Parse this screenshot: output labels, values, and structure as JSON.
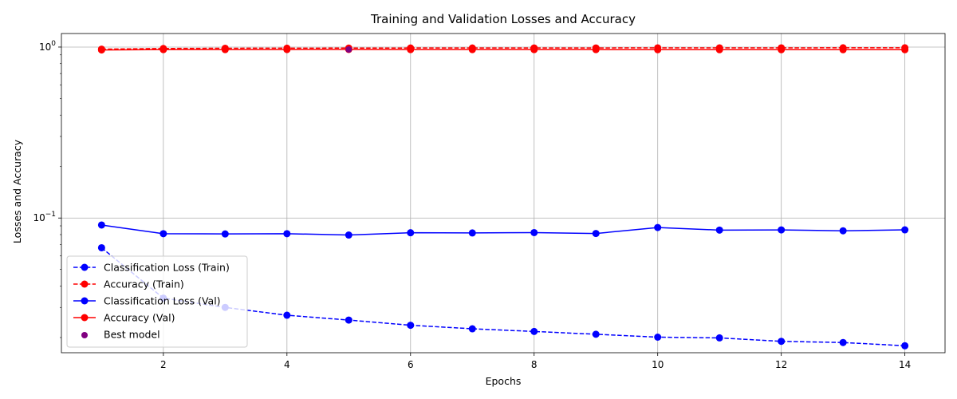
{
  "chart_data": {
    "type": "line",
    "title": "Training and Validation Losses and Accuracy",
    "xlabel": "Epochs",
    "ylabel": "Losses and Accuracy",
    "yscale": "log",
    "ylim": [
      0.0163,
      1.2
    ],
    "xlim": [
      0.35,
      14.65
    ],
    "grid": true,
    "legend_position": "lower-left",
    "x_ticks": [
      2,
      4,
      6,
      8,
      10,
      12,
      14
    ],
    "y_ticks": [
      {
        "value": 1,
        "label": "10^0"
      },
      {
        "value": 0.1,
        "label": "10^-1"
      }
    ],
    "x": [
      1,
      2,
      3,
      4,
      5,
      6,
      7,
      8,
      9,
      10,
      11,
      12,
      13,
      14
    ],
    "series": [
      {
        "name": "Classification Loss (Train)",
        "color": "#0000ff",
        "line_style": "dashed",
        "marker": "circle",
        "values": [
          0.067,
          0.034,
          0.03,
          0.027,
          0.0253,
          0.0236,
          0.0225,
          0.0217,
          0.0209,
          0.0201,
          0.0199,
          0.019,
          0.0187,
          0.0179
        ]
      },
      {
        "name": "Accuracy (Train)",
        "color": "#ff0000",
        "line_style": "dashed",
        "marker": "circle",
        "values": [
          0.972,
          0.981,
          0.984,
          0.985,
          0.986,
          0.987,
          0.987,
          0.988,
          0.988,
          0.989,
          0.989,
          0.989,
          0.99,
          0.99
        ]
      },
      {
        "name": "Classification Loss (Val)",
        "color": "#0000ff",
        "line_style": "solid",
        "marker": "circle",
        "values": [
          0.091,
          0.081,
          0.0807,
          0.081,
          0.0795,
          0.082,
          0.0818,
          0.0822,
          0.0812,
          0.088,
          0.085,
          0.0852,
          0.0842,
          0.0853
        ]
      },
      {
        "name": "Accuracy (Val)",
        "color": "#ff0000",
        "line_style": "solid",
        "marker": "circle",
        "values": [
          0.962,
          0.966,
          0.966,
          0.967,
          0.968,
          0.966,
          0.966,
          0.966,
          0.966,
          0.965,
          0.965,
          0.965,
          0.965,
          0.965
        ]
      }
    ],
    "best_model": {
      "name": "Best model",
      "color": "#800080",
      "x": 5,
      "y": 0.968
    }
  }
}
